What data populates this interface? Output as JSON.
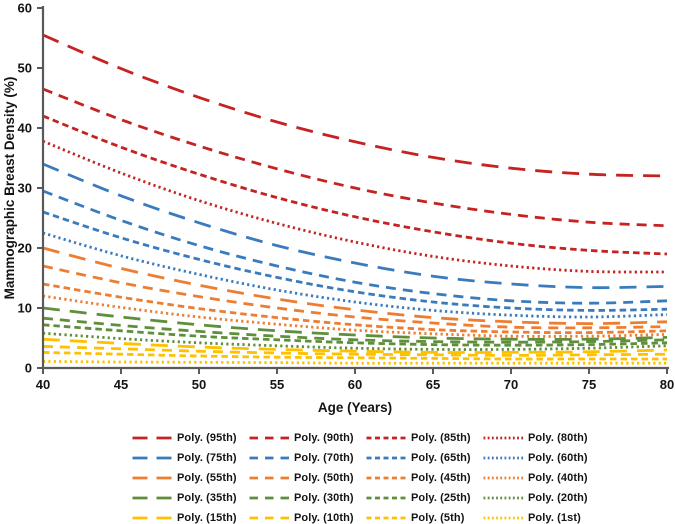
{
  "chart_data": {
    "type": "line",
    "title": "",
    "xlabel": "Age (Years)",
    "ylabel": "Mammographic Breast Density (%)",
    "x": [
      40,
      45,
      50,
      55,
      60,
      65,
      70,
      75,
      80
    ],
    "xlim": [
      40,
      80
    ],
    "ylim": [
      0,
      60
    ],
    "x_ticks": [
      40,
      45,
      50,
      55,
      60,
      65,
      70,
      75,
      80
    ],
    "y_ticks": [
      0,
      10,
      20,
      30,
      40,
      50,
      60
    ],
    "grid": false,
    "legend_position": "bottom",
    "legend_columns": 4,
    "axis_color": "#595959",
    "dash_styles": {
      "long": {
        "plot": "17 10",
        "legend": "15 9"
      },
      "medium": {
        "plot": "10 7",
        "legend": "8.5 7"
      },
      "short": {
        "plot": "6.5 4",
        "legend": "5 3.5"
      },
      "dotted": {
        "plot": "2.2 3.2",
        "legend": "1.8 2.4"
      }
    },
    "colors": {
      "red": "#C52222",
      "blue": "#3A7BBE",
      "orange": "#ED7D31",
      "green": "#5E8F3A",
      "yellow": "#FFC000"
    },
    "series": [
      {
        "name": "Poly. (95th)",
        "color": "#C52222",
        "dash": "long",
        "values": [
          55.5,
          49.9,
          45.1,
          41.0,
          37.7,
          35.1,
          33.3,
          32.3,
          32.0
        ]
      },
      {
        "name": "Poly. (90th)",
        "color": "#C52222",
        "dash": "medium",
        "values": [
          46.5,
          41.4,
          37.0,
          33.2,
          30.0,
          27.5,
          25.6,
          24.3,
          23.7
        ]
      },
      {
        "name": "Poly. (85th)",
        "color": "#C52222",
        "dash": "short",
        "values": [
          42.0,
          36.8,
          32.3,
          28.4,
          25.2,
          22.7,
          20.8,
          19.6,
          19.0
        ]
      },
      {
        "name": "Poly. (80th)",
        "color": "#C52222",
        "dash": "dotted",
        "values": [
          37.8,
          32.5,
          27.9,
          24.1,
          21.0,
          18.6,
          17.0,
          16.1,
          16.0
        ]
      },
      {
        "name": "Poly. (75th)",
        "color": "#3A7BBE",
        "dash": "long",
        "values": [
          34.0,
          28.7,
          24.2,
          20.4,
          17.5,
          15.3,
          14.0,
          13.4,
          13.6
        ]
      },
      {
        "name": "Poly. (70th)",
        "color": "#3A7BBE",
        "dash": "medium",
        "values": [
          29.5,
          24.6,
          20.4,
          17.0,
          14.3,
          12.4,
          11.2,
          10.8,
          11.2
        ]
      },
      {
        "name": "Poly. (65th)",
        "color": "#3A7BBE",
        "dash": "short",
        "values": [
          26.0,
          21.7,
          18.1,
          15.1,
          12.7,
          11.0,
          10.0,
          9.6,
          9.8
        ]
      },
      {
        "name": "Poly. (60th)",
        "color": "#3A7BBE",
        "dash": "dotted",
        "values": [
          22.5,
          18.7,
          15.6,
          13.0,
          11.0,
          9.6,
          8.8,
          8.5,
          8.9
        ]
      },
      {
        "name": "Poly. (55th)",
        "color": "#ED7D31",
        "dash": "long",
        "values": [
          20.0,
          16.6,
          13.8,
          11.5,
          9.7,
          8.4,
          7.7,
          7.4,
          7.7
        ]
      },
      {
        "name": "Poly. (50th)",
        "color": "#ED7D31",
        "dash": "medium",
        "values": [
          17.0,
          14.2,
          11.9,
          10.0,
          8.5,
          7.5,
          6.8,
          6.7,
          6.9
        ]
      },
      {
        "name": "Poly. (45th)",
        "color": "#ED7D31",
        "dash": "short",
        "values": [
          14.0,
          11.8,
          9.9,
          8.4,
          7.2,
          6.4,
          6.0,
          5.9,
          6.2
        ]
      },
      {
        "name": "Poly. (40th)",
        "color": "#ED7D31",
        "dash": "dotted",
        "values": [
          12.0,
          10.1,
          8.5,
          7.3,
          6.3,
          5.7,
          5.3,
          5.3,
          5.6
        ]
      },
      {
        "name": "Poly. (35th)",
        "color": "#5E8F3A",
        "dash": "long",
        "values": [
          10.0,
          8.5,
          7.2,
          6.2,
          5.5,
          5.0,
          4.8,
          4.8,
          5.1
        ]
      },
      {
        "name": "Poly. (30th)",
        "color": "#5E8F3A",
        "dash": "medium",
        "values": [
          8.3,
          7.1,
          6.1,
          5.3,
          4.7,
          4.4,
          4.3,
          4.4,
          4.7
        ]
      },
      {
        "name": "Poly. (25th)",
        "color": "#5E8F3A",
        "dash": "short",
        "values": [
          7.2,
          6.2,
          5.3,
          4.7,
          4.2,
          3.9,
          3.8,
          3.9,
          4.2
        ]
      },
      {
        "name": "Poly. (20th)",
        "color": "#5E8F3A",
        "dash": "dotted",
        "values": [
          5.8,
          4.9,
          4.2,
          3.7,
          3.3,
          3.1,
          3.1,
          3.3,
          3.7
        ]
      },
      {
        "name": "Poly. (15th)",
        "color": "#FFC000",
        "dash": "long",
        "values": [
          4.8,
          4.1,
          3.5,
          3.1,
          2.8,
          2.6,
          2.6,
          2.7,
          3.0
        ]
      },
      {
        "name": "Poly. (10th)",
        "color": "#FFC000",
        "dash": "medium",
        "values": [
          3.6,
          3.2,
          2.8,
          2.5,
          2.3,
          2.2,
          2.1,
          2.2,
          2.3
        ]
      },
      {
        "name": "Poly. (5th)",
        "color": "#FFC000",
        "dash": "short",
        "values": [
          2.6,
          2.3,
          2.0,
          1.8,
          1.7,
          1.6,
          1.5,
          1.5,
          1.5
        ]
      },
      {
        "name": "Poly. (1st)",
        "color": "#FFC000",
        "dash": "dotted",
        "values": [
          1.1,
          1.0,
          0.95,
          0.9,
          0.8,
          0.8,
          0.8,
          0.8,
          0.8
        ]
      }
    ]
  }
}
